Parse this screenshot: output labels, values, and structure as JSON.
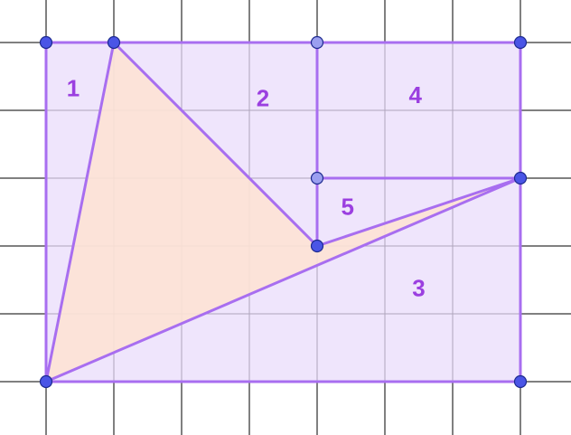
{
  "figure": {
    "grid_columns": [
      -0.7,
      7.6
    ],
    "grid_rows": [
      -0.8,
      5.6
    ],
    "grid_color": "#000000",
    "outline_color": "#a86ef0",
    "rectangle_fill": "#e9dcfb",
    "triangle_fill": "#fde2d5",
    "vertex_fill_dark": "#4a55e6",
    "vertex_fill_light": "#9b9ff0",
    "vertex_stroke": "#1d2a8f",
    "label_color": "#9b3fe0",
    "rectangle": {
      "x_min": 0,
      "x_max": 7,
      "y_min": 0,
      "y_max": 5
    },
    "vertices": [
      {
        "name": "bottom-left",
        "x": 0,
        "y": 0,
        "shade": "dark"
      },
      {
        "name": "bottom-right",
        "x": 7,
        "y": 0,
        "shade": "dark"
      },
      {
        "name": "top-left",
        "x": 0,
        "y": 5,
        "shade": "dark"
      },
      {
        "name": "top-second",
        "x": 1,
        "y": 5,
        "shade": "dark"
      },
      {
        "name": "top-middle",
        "x": 4,
        "y": 5,
        "shade": "light"
      },
      {
        "name": "top-right",
        "x": 7,
        "y": 5,
        "shade": "dark"
      },
      {
        "name": "right-middle",
        "x": 7,
        "y": 3,
        "shade": "dark"
      },
      {
        "name": "inner-upper",
        "x": 4,
        "y": 3,
        "shade": "light"
      },
      {
        "name": "inner-lower",
        "x": 4,
        "y": 2,
        "shade": "dark"
      }
    ],
    "shaded_triangle": [
      [
        0,
        0
      ],
      [
        1,
        5
      ],
      [
        4,
        2
      ],
      [
        7,
        3
      ]
    ],
    "segments": [
      [
        [
          0,
          0
        ],
        [
          1,
          5
        ]
      ],
      [
        [
          1,
          5
        ],
        [
          4,
          2
        ]
      ],
      [
        [
          4,
          2
        ],
        [
          7,
          3
        ]
      ],
      [
        [
          0,
          0
        ],
        [
          7,
          3
        ]
      ],
      [
        [
          4,
          5
        ],
        [
          4,
          2
        ]
      ],
      [
        [
          4,
          3
        ],
        [
          7,
          3
        ]
      ]
    ],
    "region_labels": [
      {
        "text": "1",
        "x": 0.4,
        "y": 4.3
      },
      {
        "text": "2",
        "x": 3.2,
        "y": 4.15
      },
      {
        "text": "4",
        "x": 5.45,
        "y": 4.2
      },
      {
        "text": "5",
        "x": 4.45,
        "y": 2.55
      },
      {
        "text": "3",
        "x": 5.5,
        "y": 1.35
      }
    ]
  }
}
